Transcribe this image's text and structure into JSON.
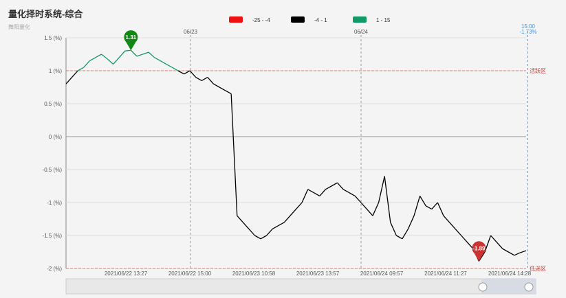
{
  "header": {
    "title": "量化择时系统-综合",
    "subtitle": "舞阳量化"
  },
  "chart_data": {
    "type": "line",
    "ylabel_unit": "(%)",
    "ylim": [
      -2,
      1.5
    ],
    "yticks": [
      "1.5 (%)",
      "1 (%)",
      "0.5 (%)",
      "0 (%)",
      "-0.5 (%)",
      "-1 (%)",
      "-1.5 (%)",
      "-2 (%)"
    ],
    "ytick_values": [
      1.5,
      1,
      0.5,
      0,
      -0.5,
      -1,
      -1.5,
      -2
    ],
    "xticks": [
      "2021/06/22 13:27",
      "2021/06/22 15:00",
      "2021/06/23 10:58",
      "2021/06/23 13:57",
      "2021/06/24 09:57",
      "2021/06/24 11:27",
      "2021/06/24 14:28"
    ],
    "day_markers": [
      "06/23",
      "06/24"
    ],
    "legend": [
      {
        "label": "-25 - -4",
        "color": "#ee1111"
      },
      {
        "label": "-4 - 1",
        "color": "#000000"
      },
      {
        "label": "1 - 15",
        "color": "#119966"
      }
    ],
    "reference_lines": [
      {
        "label": "活跃区",
        "value": 1,
        "color": "#e07a7a"
      },
      {
        "label": "低迷区",
        "value": -2,
        "color": "#e07a7a"
      }
    ],
    "current": {
      "time": "15:00",
      "value": "-1.73%"
    },
    "max_marker": {
      "label": "1.31",
      "value": 1.31,
      "color": "#118811"
    },
    "min_marker": {
      "label": "-1.89",
      "value": -1.89,
      "color": "#cc3333"
    },
    "series": [
      {
        "colors_by_value": true,
        "values": [
          0.8,
          0.9,
          1.0,
          1.05,
          1.15,
          1.2,
          1.25,
          1.18,
          1.1,
          1.2,
          1.3,
          1.31,
          1.22,
          1.25,
          1.28,
          1.2,
          1.15,
          1.1,
          1.05,
          1.0,
          0.95,
          1.0,
          0.9,
          0.85,
          0.9,
          0.8,
          0.75,
          0.7,
          0.65,
          -1.2,
          -1.3,
          -1.4,
          -1.5,
          -1.55,
          -1.5,
          -1.4,
          -1.35,
          -1.3,
          -1.2,
          -1.1,
          -1.0,
          -0.8,
          -0.85,
          -0.9,
          -0.8,
          -0.75,
          -0.7,
          -0.8,
          -0.85,
          -0.9,
          -1.0,
          -1.1,
          -1.2,
          -1.0,
          -0.6,
          -1.3,
          -1.5,
          -1.55,
          -1.4,
          -1.2,
          -0.9,
          -1.05,
          -1.1,
          -1.0,
          -1.2,
          -1.3,
          -1.4,
          -1.5,
          -1.6,
          -1.7,
          -1.89,
          -1.75,
          -1.5,
          -1.6,
          -1.7,
          -1.75,
          -1.8,
          -1.76,
          -1.73
        ]
      }
    ]
  }
}
